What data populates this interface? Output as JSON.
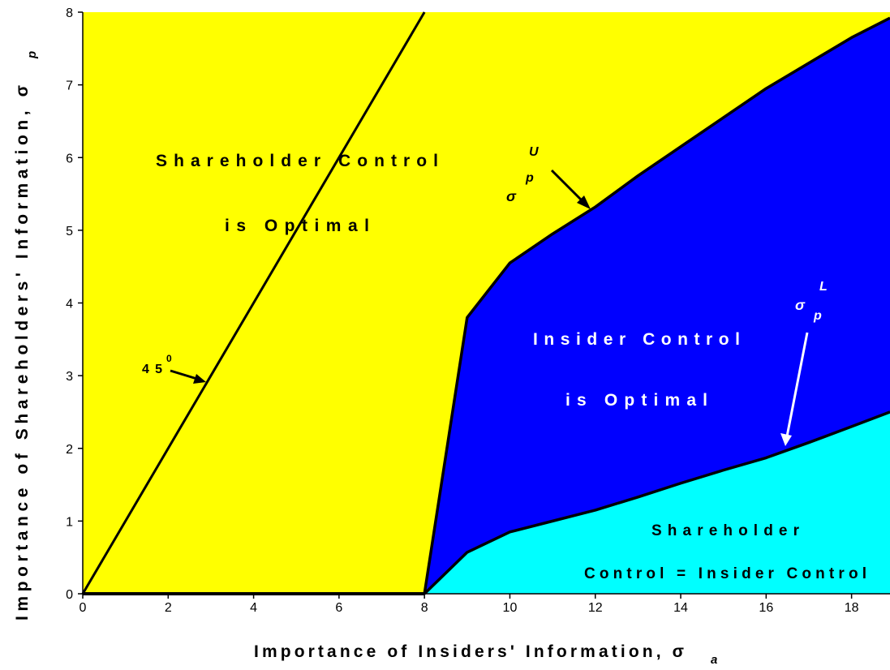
{
  "chart_data": {
    "type": "area",
    "xlim": [
      0,
      18.9
    ],
    "ylim": [
      0,
      8
    ],
    "xticks": [
      0,
      2,
      4,
      6,
      8,
      10,
      12,
      14,
      16,
      18
    ],
    "yticks": [
      0,
      1,
      2,
      3,
      4,
      5,
      6,
      7,
      8
    ],
    "background": "#ffff00",
    "x": [
      8,
      9,
      10,
      11,
      12,
      13,
      14,
      15,
      16,
      17,
      18,
      18.9
    ],
    "series": [
      {
        "color": "#0000ff",
        "values": [
          0,
          3.8,
          4.55,
          4.95,
          5.32,
          5.75,
          6.15,
          6.55,
          6.95,
          7.3,
          7.65,
          7.92
        ]
      },
      {
        "color": "#00ffff",
        "values": [
          0,
          0.57,
          0.85,
          1.0,
          1.15,
          1.33,
          1.52,
          1.7,
          1.87,
          2.08,
          2.3,
          2.5
        ]
      }
    ],
    "diagonal": {
      "x": [
        0,
        8
      ],
      "values": [
        0,
        8
      ]
    },
    "xlabel": "Importance of Insiders' Information, σ",
    "xlabel_sub": "a",
    "ylabel": "Importance of Shareholders' Information, σ",
    "ylabel_sub": "p",
    "annotations": [
      "Shareholder Control",
      "is Optimal",
      "Insider Control",
      "is Optimal",
      "Shareholder",
      "Control = Insider Control",
      "45",
      "0",
      "σ",
      "p",
      "U",
      "σ",
      "p",
      "L"
    ]
  }
}
